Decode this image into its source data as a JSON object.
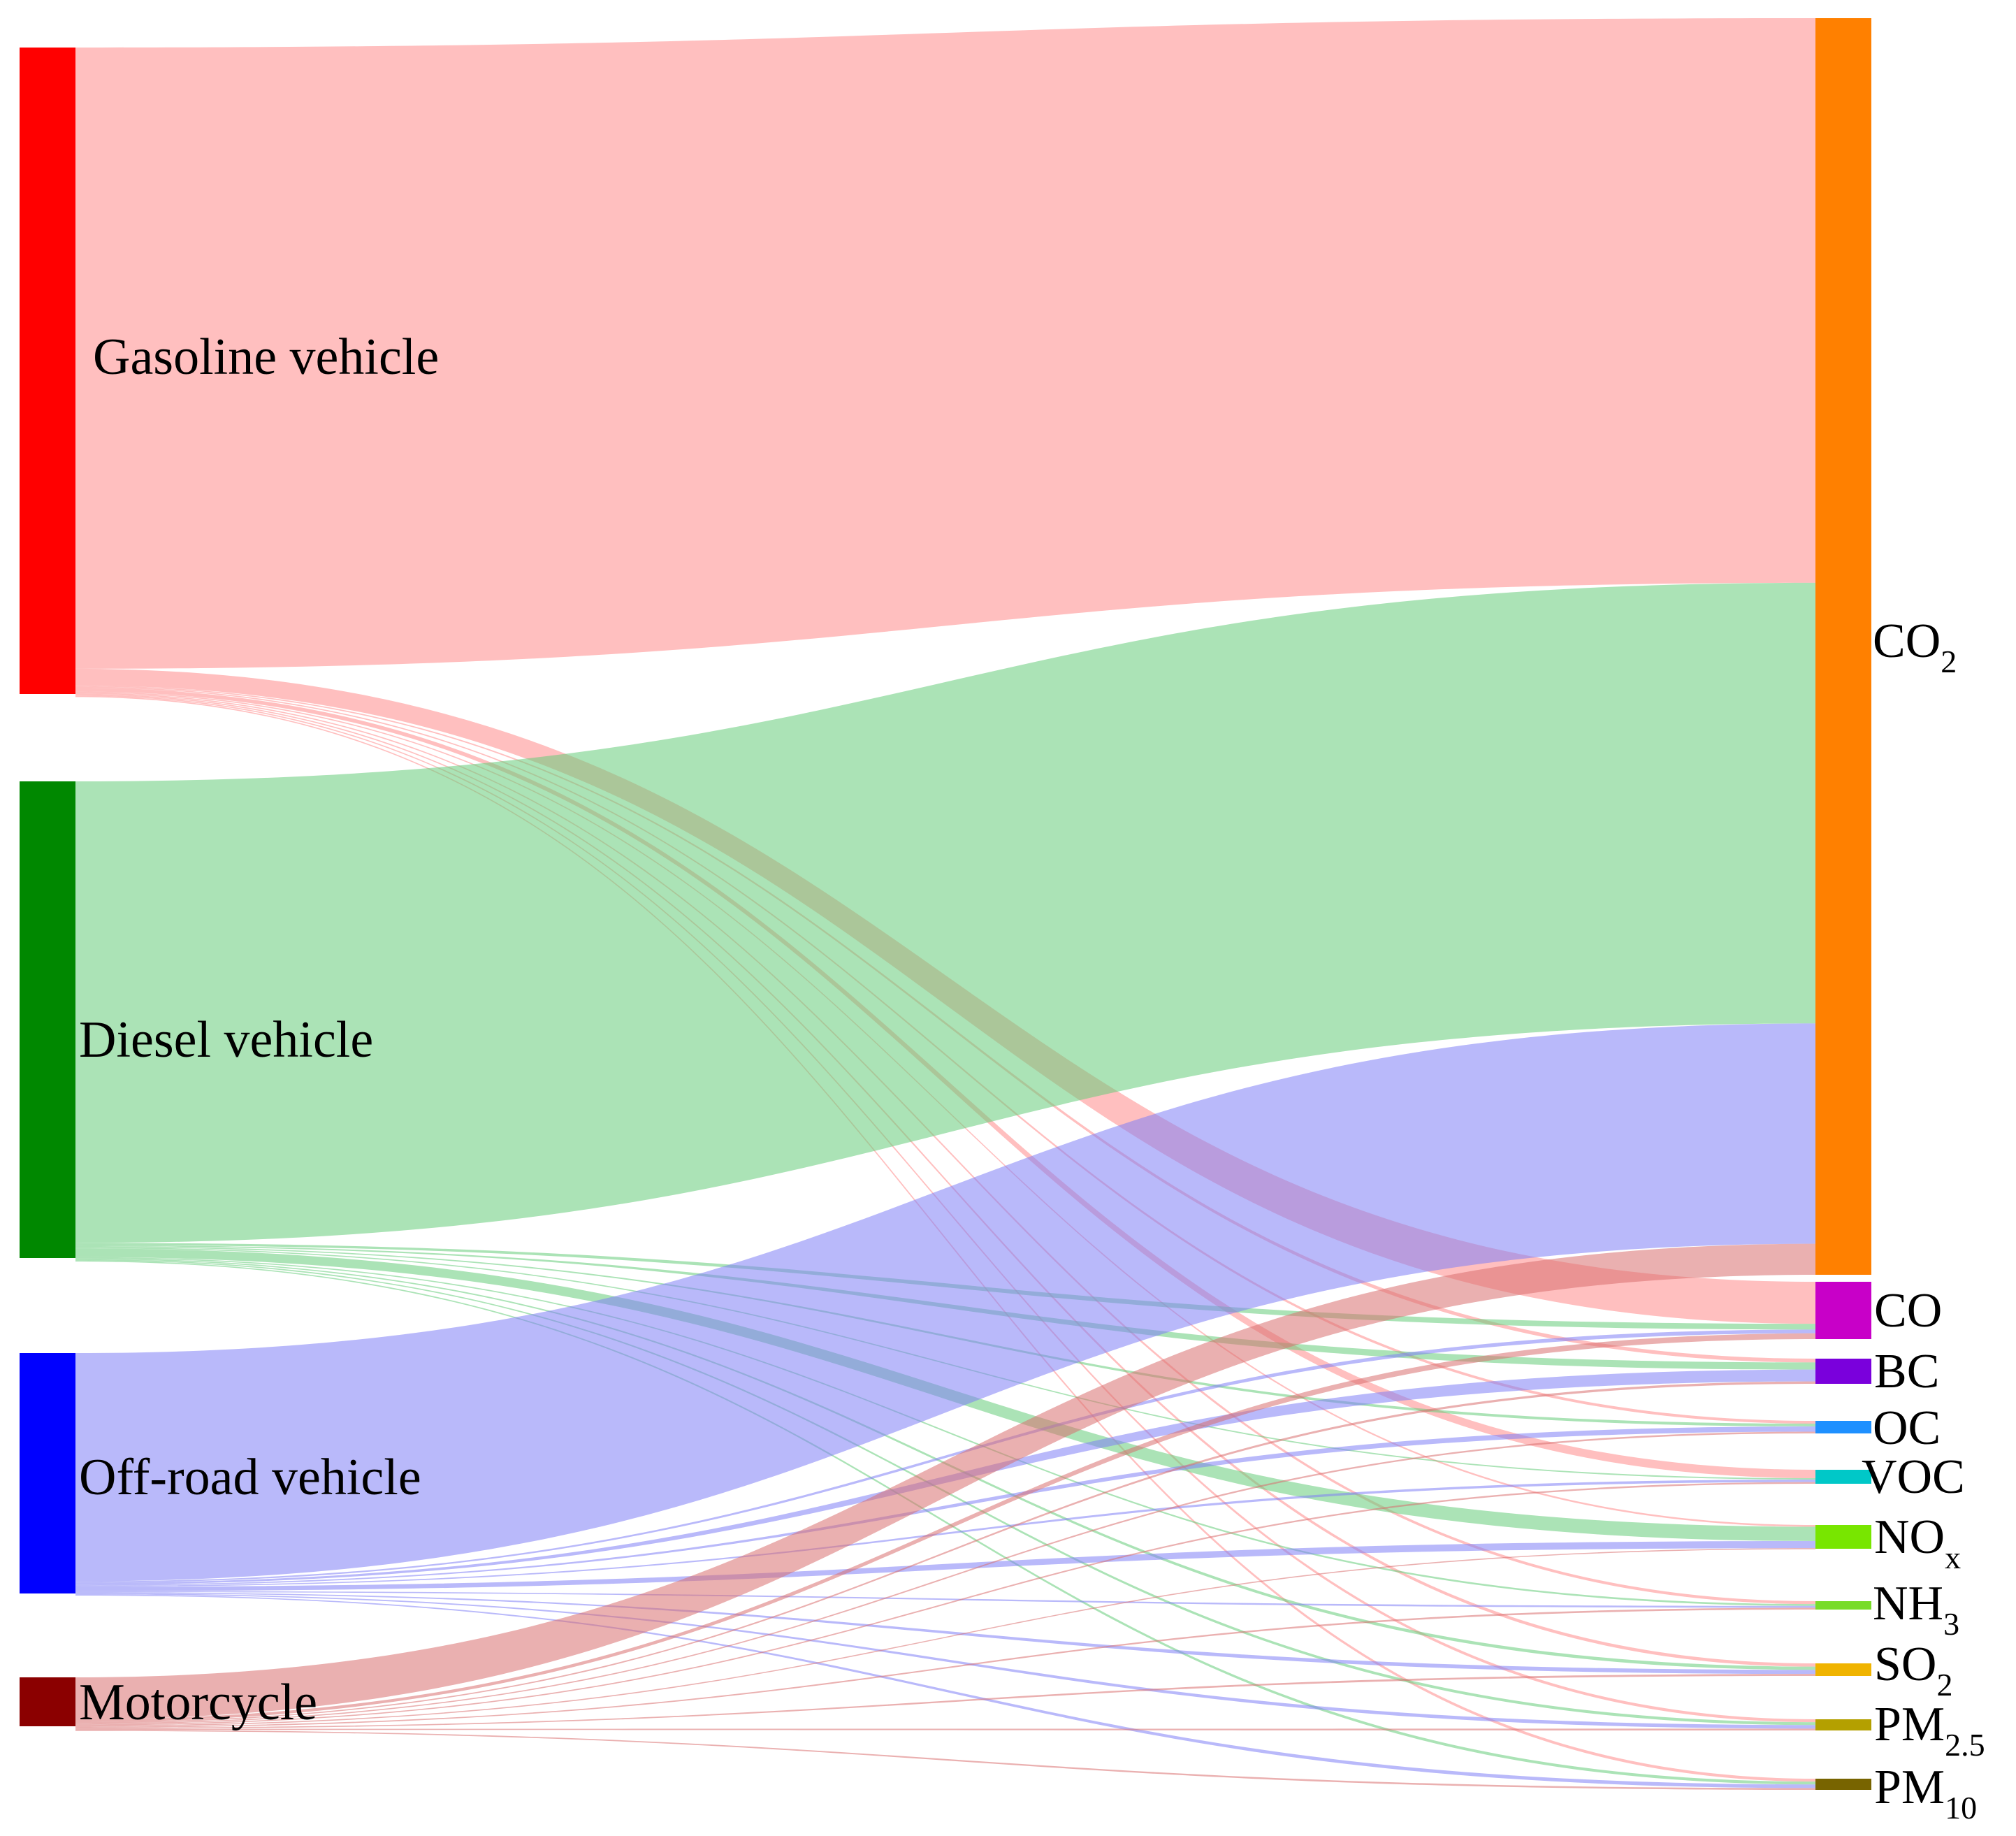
{
  "chart_data": {
    "type": "sankey",
    "title": "",
    "sources": [
      {
        "id": "gasoline",
        "label": "Gasoline vehicle",
        "color": "#ff0000",
        "link_color": "#ff8a8a"
      },
      {
        "id": "diesel",
        "label": "Diesel vehicle",
        "color": "#008800",
        "link_color": "#66cc7a"
      },
      {
        "id": "offroad",
        "label": "Off-road vehicle",
        "color": "#0000ff",
        "link_color": "#7f7ff5"
      },
      {
        "id": "motorcycle",
        "label": "Motorcycle",
        "color": "#8b0000",
        "link_color": "#d97070"
      }
    ],
    "targets": [
      {
        "id": "co2",
        "label": "CO",
        "sub": "2",
        "color": "#ff8000"
      },
      {
        "id": "co",
        "label": "CO",
        "sub": "",
        "color": "#c800c8"
      },
      {
        "id": "bc",
        "label": "BC",
        "sub": "",
        "color": "#7a00dc"
      },
      {
        "id": "oc",
        "label": "OC",
        "sub": "",
        "color": "#1e90ff"
      },
      {
        "id": "voc",
        "label": "VOC",
        "sub": "",
        "color": "#00c8c8"
      },
      {
        "id": "nox",
        "label": "NO",
        "sub": "x",
        "color": "#78e600"
      },
      {
        "id": "nh3",
        "label": "NH",
        "sub": "3",
        "color": "#78dc28"
      },
      {
        "id": "so2",
        "label": "SO",
        "sub": "2",
        "color": "#f0b400"
      },
      {
        "id": "pm25",
        "label": "PM",
        "sub": "2.5",
        "color": "#b4a000"
      },
      {
        "id": "pm10",
        "label": "PM",
        "sub": "10",
        "color": "#786400"
      }
    ],
    "links": [
      {
        "source": "gasoline",
        "target": "co2",
        "value": 820
      },
      {
        "source": "gasoline",
        "target": "co",
        "value": 22
      },
      {
        "source": "gasoline",
        "target": "bc",
        "value": 0.8
      },
      {
        "source": "gasoline",
        "target": "oc",
        "value": 0.8
      },
      {
        "source": "gasoline",
        "target": "voc",
        "value": 5
      },
      {
        "source": "gasoline",
        "target": "nox",
        "value": 1.5
      },
      {
        "source": "gasoline",
        "target": "nh3",
        "value": 0.8
      },
      {
        "source": "gasoline",
        "target": "so2",
        "value": 0.8
      },
      {
        "source": "gasoline",
        "target": "pm25",
        "value": 0.8
      },
      {
        "source": "gasoline",
        "target": "pm10",
        "value": 0.8
      },
      {
        "source": "diesel",
        "target": "co2",
        "value": 640
      },
      {
        "source": "diesel",
        "target": "co",
        "value": 3
      },
      {
        "source": "diesel",
        "target": "bc",
        "value": 1.5
      },
      {
        "source": "diesel",
        "target": "oc",
        "value": 0.8
      },
      {
        "source": "diesel",
        "target": "voc",
        "value": 0.8
      },
      {
        "source": "diesel",
        "target": "nox",
        "value": 12
      },
      {
        "source": "diesel",
        "target": "nh3",
        "value": 0.5
      },
      {
        "source": "diesel",
        "target": "so2",
        "value": 0.8
      },
      {
        "source": "diesel",
        "target": "pm25",
        "value": 0.8
      },
      {
        "source": "diesel",
        "target": "pm10",
        "value": 0.8
      },
      {
        "source": "offroad",
        "target": "co2",
        "value": 320
      },
      {
        "source": "offroad",
        "target": "co",
        "value": 2
      },
      {
        "source": "offroad",
        "target": "bc",
        "value": 2.5
      },
      {
        "source": "offroad",
        "target": "oc",
        "value": 1.5
      },
      {
        "source": "offroad",
        "target": "voc",
        "value": 1.5
      },
      {
        "source": "offroad",
        "target": "nox",
        "value": 6
      },
      {
        "source": "offroad",
        "target": "nh3",
        "value": 0.5
      },
      {
        "source": "offroad",
        "target": "so2",
        "value": 1
      },
      {
        "source": "offroad",
        "target": "pm25",
        "value": 1
      },
      {
        "source": "offroad",
        "target": "pm10",
        "value": 1
      },
      {
        "source": "motorcycle",
        "target": "co2",
        "value": 45
      },
      {
        "source": "motorcycle",
        "target": "co",
        "value": 3
      },
      {
        "source": "motorcycle",
        "target": "bc",
        "value": 0.5
      },
      {
        "source": "motorcycle",
        "target": "oc",
        "value": 0.5
      },
      {
        "source": "motorcycle",
        "target": "voc",
        "value": 1
      },
      {
        "source": "motorcycle",
        "target": "nox",
        "value": 0.5
      },
      {
        "source": "motorcycle",
        "target": "nh3",
        "value": 0.5
      },
      {
        "source": "motorcycle",
        "target": "so2",
        "value": 0.5
      },
      {
        "source": "motorcycle",
        "target": "pm25",
        "value": 0.5
      },
      {
        "source": "motorcycle",
        "target": "pm10",
        "value": 0.5
      }
    ]
  }
}
